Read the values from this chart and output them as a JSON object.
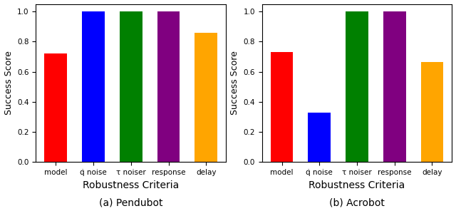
{
  "pendubot": {
    "categories": [
      "model",
      "q̇ noise",
      "τ noiser",
      "response",
      "delay"
    ],
    "values": [
      0.72,
      1.0,
      1.0,
      1.0,
      0.86
    ],
    "colors": [
      "red",
      "blue",
      "green",
      "purple",
      "orange"
    ],
    "subtitle": "(a) Pendubot",
    "ylabel": "Success Score",
    "xlabel": "Robustness Criteria"
  },
  "acrobot": {
    "categories": [
      "model",
      "q̇ noise",
      "τ noiser",
      "response",
      "delay"
    ],
    "values": [
      0.73,
      0.33,
      1.0,
      1.0,
      0.665
    ],
    "colors": [
      "red",
      "blue",
      "green",
      "purple",
      "orange"
    ],
    "subtitle": "(b) Acrobot",
    "ylabel": "Success Score",
    "xlabel": "Robustness Criteria"
  },
  "ylim": [
    0.0,
    1.05
  ],
  "yticks": [
    0.0,
    0.2,
    0.4,
    0.6,
    0.8,
    1.0
  ],
  "bar_width": 0.6,
  "figsize": [
    6.4,
    2.96
  ],
  "dpi": 100,
  "subtitle_fontsize": 10,
  "xlabel_fontsize": 10,
  "ylabel_fontsize": 9,
  "tick_fontsize": 7.5
}
